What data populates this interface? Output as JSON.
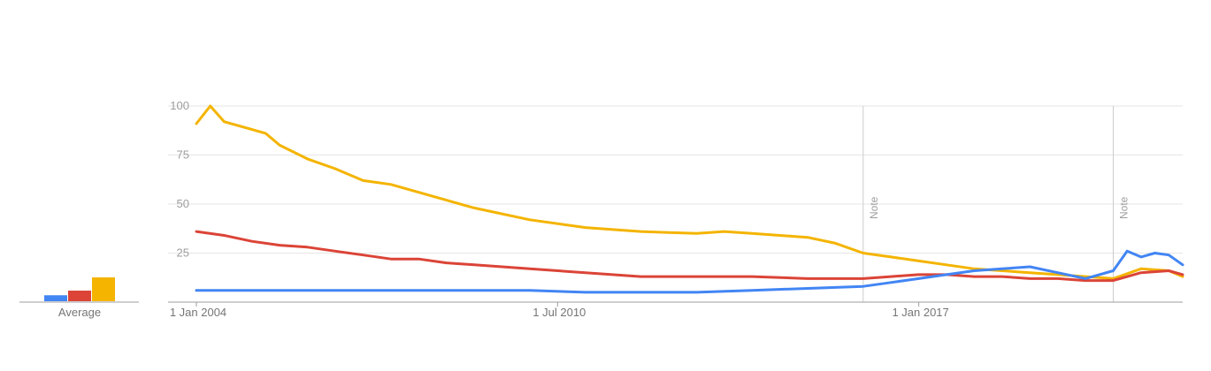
{
  "chart_data": {
    "type": "line",
    "title": "",
    "xlabel": "",
    "ylabel": "",
    "ylim": [
      0,
      100
    ],
    "y_ticks": [
      "100",
      "75",
      "50",
      "25"
    ],
    "x_tick_labels": [
      "1 Jan 2004",
      "1 Jul 2010",
      "1 Jan 2017"
    ],
    "x_range": [
      "2004-01",
      "2021-10"
    ],
    "grid": true,
    "legend": "none",
    "annotations": [
      {
        "label": "Note",
        "date": "2016-01"
      },
      {
        "label": "Note",
        "date": "2020-07"
      }
    ],
    "average_label": "Average",
    "averages": [
      9,
      16,
      36
    ],
    "series": [
      {
        "color": "#4285f4",
        "x": [
          "2004-01",
          "2005-01",
          "2006-01",
          "2007-01",
          "2008-01",
          "2009-01",
          "2010-01",
          "2011-01",
          "2012-01",
          "2013-01",
          "2014-01",
          "2015-01",
          "2016-01",
          "2016-07",
          "2017-01",
          "2017-07",
          "2018-01",
          "2018-07",
          "2019-01",
          "2019-07",
          "2020-01",
          "2020-07",
          "2020-10",
          "2021-01",
          "2021-04",
          "2021-07",
          "2021-10"
        ],
        "values": [
          6,
          6,
          6,
          6,
          6,
          6,
          6,
          5,
          5,
          5,
          6,
          7,
          8,
          10,
          12,
          14,
          16,
          17,
          18,
          15,
          12,
          16,
          26,
          23,
          25,
          24,
          19
        ]
      },
      {
        "color": "#db4437",
        "x": [
          "2004-01",
          "2004-07",
          "2005-01",
          "2005-07",
          "2006-01",
          "2006-07",
          "2007-01",
          "2007-07",
          "2008-01",
          "2008-07",
          "2009-01",
          "2010-01",
          "2011-01",
          "2012-01",
          "2013-01",
          "2014-01",
          "2015-01",
          "2016-01",
          "2016-07",
          "2017-01",
          "2017-07",
          "2018-01",
          "2018-07",
          "2019-01",
          "2019-07",
          "2020-01",
          "2020-07",
          "2021-01",
          "2021-07",
          "2021-10"
        ],
        "values": [
          36,
          34,
          31,
          29,
          28,
          26,
          24,
          22,
          22,
          20,
          19,
          17,
          15,
          13,
          13,
          13,
          12,
          12,
          13,
          14,
          14,
          13,
          13,
          12,
          12,
          11,
          11,
          15,
          16,
          14
        ]
      },
      {
        "color": "#f4b400",
        "x": [
          "2004-01",
          "2004-04",
          "2004-07",
          "2005-01",
          "2005-04",
          "2005-07",
          "2006-01",
          "2006-07",
          "2007-01",
          "2007-07",
          "2008-01",
          "2008-07",
          "2009-01",
          "2010-01",
          "2011-01",
          "2012-01",
          "2013-01",
          "2013-07",
          "2014-01",
          "2015-01",
          "2015-07",
          "2016-01",
          "2016-07",
          "2017-01",
          "2017-07",
          "2018-01",
          "2018-07",
          "2019-01",
          "2019-07",
          "2020-01",
          "2020-07",
          "2021-01",
          "2021-07",
          "2021-10"
        ],
        "values": [
          91,
          100,
          92,
          88,
          86,
          80,
          73,
          68,
          62,
          60,
          56,
          52,
          48,
          42,
          38,
          36,
          35,
          36,
          35,
          33,
          30,
          25,
          23,
          21,
          19,
          17,
          16,
          15,
          14,
          13,
          12,
          17,
          16,
          13
        ]
      }
    ]
  }
}
